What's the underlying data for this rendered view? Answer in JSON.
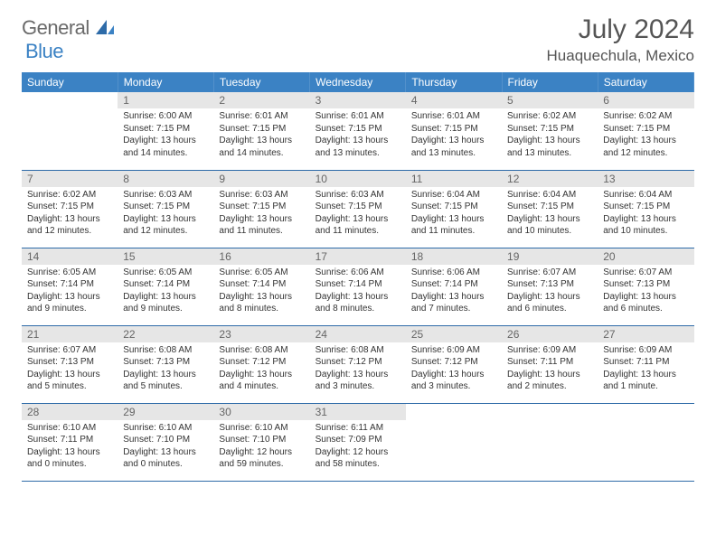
{
  "brand": {
    "part1": "General",
    "part2": "Blue"
  },
  "title": "July 2024",
  "location": "Huaquechula, Mexico",
  "colors": {
    "header_bg": "#3b82c4",
    "daynum_bg": "#e6e6e6",
    "row_border": "#2e6ba8",
    "text_muted": "#666666",
    "text_body": "#333333"
  },
  "day_headers": [
    "Sunday",
    "Monday",
    "Tuesday",
    "Wednesday",
    "Thursday",
    "Friday",
    "Saturday"
  ],
  "weeks": [
    [
      {
        "n": "",
        "sr": "",
        "ss": "",
        "dl": ""
      },
      {
        "n": "1",
        "sr": "Sunrise: 6:00 AM",
        "ss": "Sunset: 7:15 PM",
        "dl": "Daylight: 13 hours and 14 minutes."
      },
      {
        "n": "2",
        "sr": "Sunrise: 6:01 AM",
        "ss": "Sunset: 7:15 PM",
        "dl": "Daylight: 13 hours and 14 minutes."
      },
      {
        "n": "3",
        "sr": "Sunrise: 6:01 AM",
        "ss": "Sunset: 7:15 PM",
        "dl": "Daylight: 13 hours and 13 minutes."
      },
      {
        "n": "4",
        "sr": "Sunrise: 6:01 AM",
        "ss": "Sunset: 7:15 PM",
        "dl": "Daylight: 13 hours and 13 minutes."
      },
      {
        "n": "5",
        "sr": "Sunrise: 6:02 AM",
        "ss": "Sunset: 7:15 PM",
        "dl": "Daylight: 13 hours and 13 minutes."
      },
      {
        "n": "6",
        "sr": "Sunrise: 6:02 AM",
        "ss": "Sunset: 7:15 PM",
        "dl": "Daylight: 13 hours and 12 minutes."
      }
    ],
    [
      {
        "n": "7",
        "sr": "Sunrise: 6:02 AM",
        "ss": "Sunset: 7:15 PM",
        "dl": "Daylight: 13 hours and 12 minutes."
      },
      {
        "n": "8",
        "sr": "Sunrise: 6:03 AM",
        "ss": "Sunset: 7:15 PM",
        "dl": "Daylight: 13 hours and 12 minutes."
      },
      {
        "n": "9",
        "sr": "Sunrise: 6:03 AM",
        "ss": "Sunset: 7:15 PM",
        "dl": "Daylight: 13 hours and 11 minutes."
      },
      {
        "n": "10",
        "sr": "Sunrise: 6:03 AM",
        "ss": "Sunset: 7:15 PM",
        "dl": "Daylight: 13 hours and 11 minutes."
      },
      {
        "n": "11",
        "sr": "Sunrise: 6:04 AM",
        "ss": "Sunset: 7:15 PM",
        "dl": "Daylight: 13 hours and 11 minutes."
      },
      {
        "n": "12",
        "sr": "Sunrise: 6:04 AM",
        "ss": "Sunset: 7:15 PM",
        "dl": "Daylight: 13 hours and 10 minutes."
      },
      {
        "n": "13",
        "sr": "Sunrise: 6:04 AM",
        "ss": "Sunset: 7:15 PM",
        "dl": "Daylight: 13 hours and 10 minutes."
      }
    ],
    [
      {
        "n": "14",
        "sr": "Sunrise: 6:05 AM",
        "ss": "Sunset: 7:14 PM",
        "dl": "Daylight: 13 hours and 9 minutes."
      },
      {
        "n": "15",
        "sr": "Sunrise: 6:05 AM",
        "ss": "Sunset: 7:14 PM",
        "dl": "Daylight: 13 hours and 9 minutes."
      },
      {
        "n": "16",
        "sr": "Sunrise: 6:05 AM",
        "ss": "Sunset: 7:14 PM",
        "dl": "Daylight: 13 hours and 8 minutes."
      },
      {
        "n": "17",
        "sr": "Sunrise: 6:06 AM",
        "ss": "Sunset: 7:14 PM",
        "dl": "Daylight: 13 hours and 8 minutes."
      },
      {
        "n": "18",
        "sr": "Sunrise: 6:06 AM",
        "ss": "Sunset: 7:14 PM",
        "dl": "Daylight: 13 hours and 7 minutes."
      },
      {
        "n": "19",
        "sr": "Sunrise: 6:07 AM",
        "ss": "Sunset: 7:13 PM",
        "dl": "Daylight: 13 hours and 6 minutes."
      },
      {
        "n": "20",
        "sr": "Sunrise: 6:07 AM",
        "ss": "Sunset: 7:13 PM",
        "dl": "Daylight: 13 hours and 6 minutes."
      }
    ],
    [
      {
        "n": "21",
        "sr": "Sunrise: 6:07 AM",
        "ss": "Sunset: 7:13 PM",
        "dl": "Daylight: 13 hours and 5 minutes."
      },
      {
        "n": "22",
        "sr": "Sunrise: 6:08 AM",
        "ss": "Sunset: 7:13 PM",
        "dl": "Daylight: 13 hours and 5 minutes."
      },
      {
        "n": "23",
        "sr": "Sunrise: 6:08 AM",
        "ss": "Sunset: 7:12 PM",
        "dl": "Daylight: 13 hours and 4 minutes."
      },
      {
        "n": "24",
        "sr": "Sunrise: 6:08 AM",
        "ss": "Sunset: 7:12 PM",
        "dl": "Daylight: 13 hours and 3 minutes."
      },
      {
        "n": "25",
        "sr": "Sunrise: 6:09 AM",
        "ss": "Sunset: 7:12 PM",
        "dl": "Daylight: 13 hours and 3 minutes."
      },
      {
        "n": "26",
        "sr": "Sunrise: 6:09 AM",
        "ss": "Sunset: 7:11 PM",
        "dl": "Daylight: 13 hours and 2 minutes."
      },
      {
        "n": "27",
        "sr": "Sunrise: 6:09 AM",
        "ss": "Sunset: 7:11 PM",
        "dl": "Daylight: 13 hours and 1 minute."
      }
    ],
    [
      {
        "n": "28",
        "sr": "Sunrise: 6:10 AM",
        "ss": "Sunset: 7:11 PM",
        "dl": "Daylight: 13 hours and 0 minutes."
      },
      {
        "n": "29",
        "sr": "Sunrise: 6:10 AM",
        "ss": "Sunset: 7:10 PM",
        "dl": "Daylight: 13 hours and 0 minutes."
      },
      {
        "n": "30",
        "sr": "Sunrise: 6:10 AM",
        "ss": "Sunset: 7:10 PM",
        "dl": "Daylight: 12 hours and 59 minutes."
      },
      {
        "n": "31",
        "sr": "Sunrise: 6:11 AM",
        "ss": "Sunset: 7:09 PM",
        "dl": "Daylight: 12 hours and 58 minutes."
      },
      {
        "n": "",
        "sr": "",
        "ss": "",
        "dl": ""
      },
      {
        "n": "",
        "sr": "",
        "ss": "",
        "dl": ""
      },
      {
        "n": "",
        "sr": "",
        "ss": "",
        "dl": ""
      }
    ]
  ]
}
